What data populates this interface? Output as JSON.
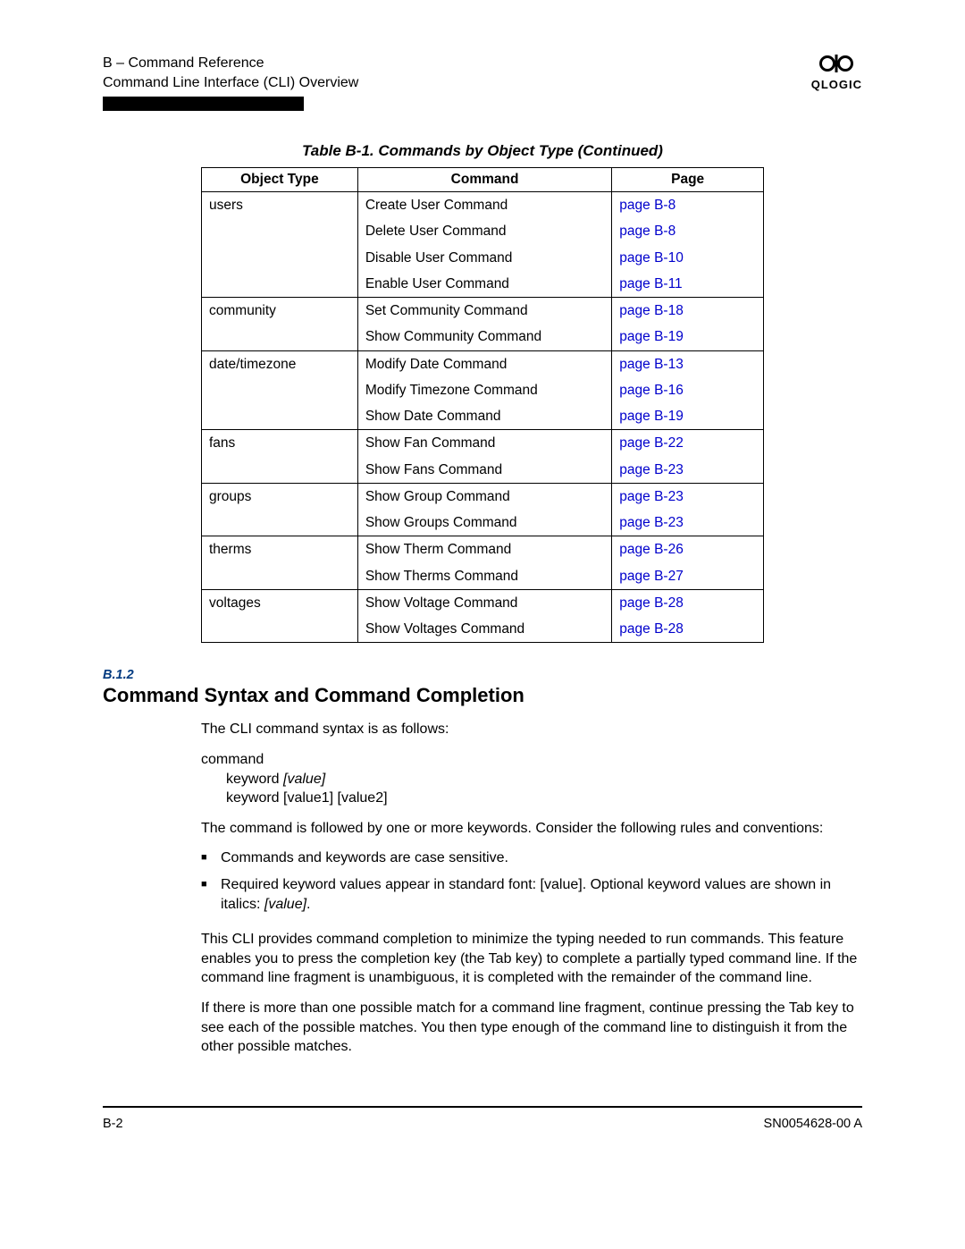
{
  "header": {
    "line1": "B – Command Reference",
    "line2": "Command Line Interface (CLI) Overview",
    "logo_text": "QLOGIC"
  },
  "table": {
    "caption": "Table B-1. Commands by Object Type (Continued)",
    "columns": [
      "Object Type",
      "Command",
      "Page"
    ],
    "colors": {
      "link": "#0000cc",
      "border": "#000000"
    },
    "groups": [
      {
        "object": "users",
        "rows": [
          {
            "cmd": "Create User Command",
            "page": "page B-8"
          },
          {
            "cmd": "Delete User Command",
            "page": "page B-8"
          },
          {
            "cmd": "Disable User Command",
            "page": "page B-10"
          },
          {
            "cmd": "Enable User Command",
            "page": "page B-11"
          }
        ]
      },
      {
        "object": "community",
        "rows": [
          {
            "cmd": "Set Community Command",
            "page": "page B-18"
          },
          {
            "cmd": "Show Community Command",
            "page": "page B-19"
          }
        ]
      },
      {
        "object": "date/timezone",
        "rows": [
          {
            "cmd": "Modify Date Command",
            "page": "page B-13"
          },
          {
            "cmd": "Modify Timezone Command",
            "page": "page B-16"
          },
          {
            "cmd": "Show Date Command",
            "page": "page B-19"
          }
        ]
      },
      {
        "object": "fans",
        "rows": [
          {
            "cmd": "Show Fan Command",
            "page": "page B-22"
          },
          {
            "cmd": "Show Fans Command",
            "page": "page B-23"
          }
        ]
      },
      {
        "object": "groups",
        "rows": [
          {
            "cmd": "Show Group Command",
            "page": "page B-23"
          },
          {
            "cmd": "Show Groups Command",
            "page": "page B-23"
          }
        ]
      },
      {
        "object": "therms",
        "rows": [
          {
            "cmd": "Show Therm Command",
            "page": "page B-26"
          },
          {
            "cmd": "Show Therms Command",
            "page": "page B-27"
          }
        ]
      },
      {
        "object": "voltages",
        "rows": [
          {
            "cmd": "Show Voltage Command",
            "page": "page B-28"
          },
          {
            "cmd": "Show Voltages Command",
            "page": "page B-28"
          }
        ]
      }
    ]
  },
  "section": {
    "num": "B.1.2",
    "title": "Command Syntax and Command Completion",
    "intro": "The CLI command syntax is as follows:",
    "syntax_cmd": "command",
    "syntax_kw1a": "keyword ",
    "syntax_kw1b": "[value]",
    "syntax_kw2": "keyword [value1] [value2]",
    "rules_intro": "The command is followed by one or more keywords. Consider the following rules and conventions:",
    "bullets": [
      "Commands and keywords are case sensitive."
    ],
    "bullet2a": "Required keyword values appear in standard font: [value]. Optional keyword values are shown in italics: ",
    "bullet2b": "[value]",
    "bullet2c": ".",
    "para_completion": "This CLI provides command completion to minimize the typing needed to run commands. This feature enables you to press the completion key (the Tab key) to complete a partially typed command line. If the command line fragment is unambiguous, it is completed with the remainder of the command line.",
    "para_multi": "If there is more than one possible match for a command line fragment, continue pressing the Tab key to see each of the possible matches. You then type enough of the command line to distinguish it from the other possible matches."
  },
  "footer": {
    "left": "B-2",
    "right": "SN0054628-00  A"
  },
  "colors": {
    "section_num": "#003a80",
    "text": "#000000",
    "background": "#ffffff"
  }
}
